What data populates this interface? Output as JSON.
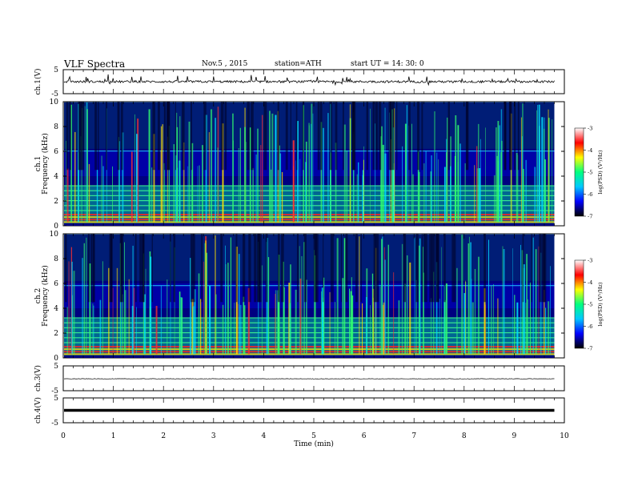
{
  "header": {
    "title": "VLF  Spectra",
    "date": "Nov.5  , 2015",
    "station": "station=ATH",
    "start": "start  UT =   14: 30: 0"
  },
  "colors": {
    "spectrogram_background": "#000080",
    "trace": "#000000",
    "colorbar_stops": [
      "#000000",
      "#0000ff",
      "#00c8ff",
      "#00ff80",
      "#ffff00",
      "#ff0000",
      "#ffffff"
    ]
  },
  "chart_data": [
    {
      "type": "line",
      "ylabel": "ch.1(V)",
      "ylim": [
        -5,
        5
      ],
      "yticks": [
        "5",
        "-5"
      ],
      "description": "noisy trace near 0 V with frequent spikes",
      "y_mean": 0.0
    },
    {
      "type": "heatmap",
      "ylabel": "ch.1\nFrequency  (kHz)",
      "ylim": [
        0,
        10
      ],
      "yticks": [
        "0",
        "2",
        "4",
        "6",
        "8",
        "10"
      ],
      "colorbar": {
        "label": "log(PSD) (V²/Hz)",
        "ticks": [
          "-3",
          "-4",
          "-5",
          "-6",
          "-7"
        ],
        "range": [
          -7,
          -3
        ]
      },
      "bands_khz": [
        0.3,
        0.5,
        0.7,
        0.9,
        1.2,
        1.6,
        2.0,
        2.4,
        2.8,
        3.2,
        6.0
      ]
    },
    {
      "type": "heatmap",
      "ylabel": "ch.2\nFrequency  (kHz)",
      "ylim": [
        0,
        10
      ],
      "yticks": [
        "0",
        "2",
        "4",
        "6",
        "8",
        "10"
      ],
      "colorbar": {
        "label": "log(PSD) (V²/Hz)",
        "ticks": [
          "-3",
          "-4",
          "-5",
          "-6",
          "-7"
        ],
        "range": [
          -7,
          -3
        ]
      },
      "bands_khz": [
        0.3,
        0.5,
        0.7,
        0.9,
        1.2,
        1.6,
        2.0,
        2.4,
        2.8,
        3.2,
        5.8
      ]
    },
    {
      "type": "line",
      "ylabel": "ch.3(V)",
      "ylim": [
        -5,
        5
      ],
      "yticks": [
        "5",
        "-5"
      ],
      "description": "flat trace near -0.2 V",
      "y_mean": -0.2
    },
    {
      "type": "line",
      "ylabel": "ch.4(V)",
      "ylim": [
        -5,
        5
      ],
      "yticks": [
        "5",
        "-5"
      ],
      "description": "thick flat trace near 0 V",
      "y_mean": 0.0
    }
  ],
  "xaxis": {
    "label": "Time  (min)",
    "xlim": [
      0,
      10
    ],
    "ticks": [
      "0",
      "1",
      "2",
      "3",
      "4",
      "5",
      "6",
      "7",
      "8",
      "9",
      "10"
    ],
    "data_end": 9.8
  }
}
